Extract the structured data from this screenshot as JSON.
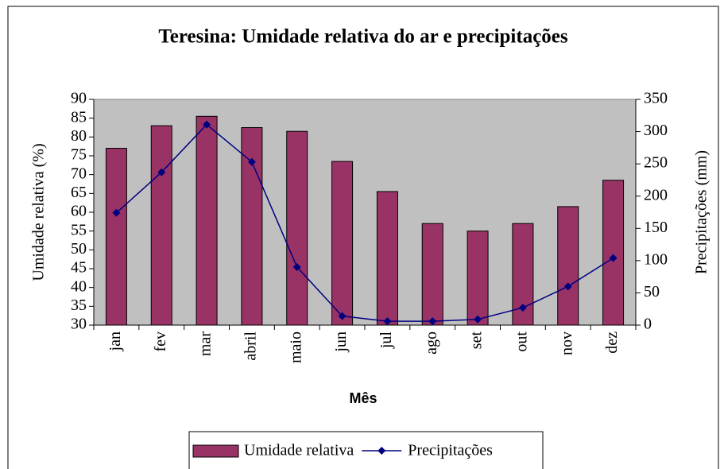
{
  "chart_data": {
    "type": "combo",
    "title": "Teresina: Umidade relativa do ar e precipitações",
    "xlabel": "Mês",
    "ylabel": "Umidade relativa (%)",
    "y2label": "Precipitações (mm)",
    "categories": [
      "jan",
      "fev",
      "mar",
      "abril",
      "maio",
      "jun",
      "jul",
      "ago",
      "set",
      "out",
      "nov",
      "dez"
    ],
    "series": [
      {
        "name": "Umidade relativa",
        "type": "bar",
        "axis": "y",
        "color": "#993366",
        "values": [
          77,
          83,
          85.5,
          82.5,
          81.5,
          73.5,
          65.5,
          57,
          55,
          57,
          61.5,
          68.5
        ]
      },
      {
        "name": "Precipitações",
        "type": "line",
        "axis": "y2",
        "color": "#000080",
        "values": [
          174,
          237,
          311,
          253,
          90,
          14,
          6,
          6,
          9,
          27,
          60,
          104
        ]
      }
    ],
    "ylim": [
      30,
      90
    ],
    "yticks": [
      30,
      35,
      40,
      45,
      50,
      55,
      60,
      65,
      70,
      75,
      80,
      85,
      90
    ],
    "y2lim": [
      0,
      350
    ],
    "y2ticks": [
      0,
      50,
      100,
      150,
      200,
      250,
      300,
      350
    ],
    "legend": "bottom",
    "plot_background": "#c0c0c0"
  }
}
